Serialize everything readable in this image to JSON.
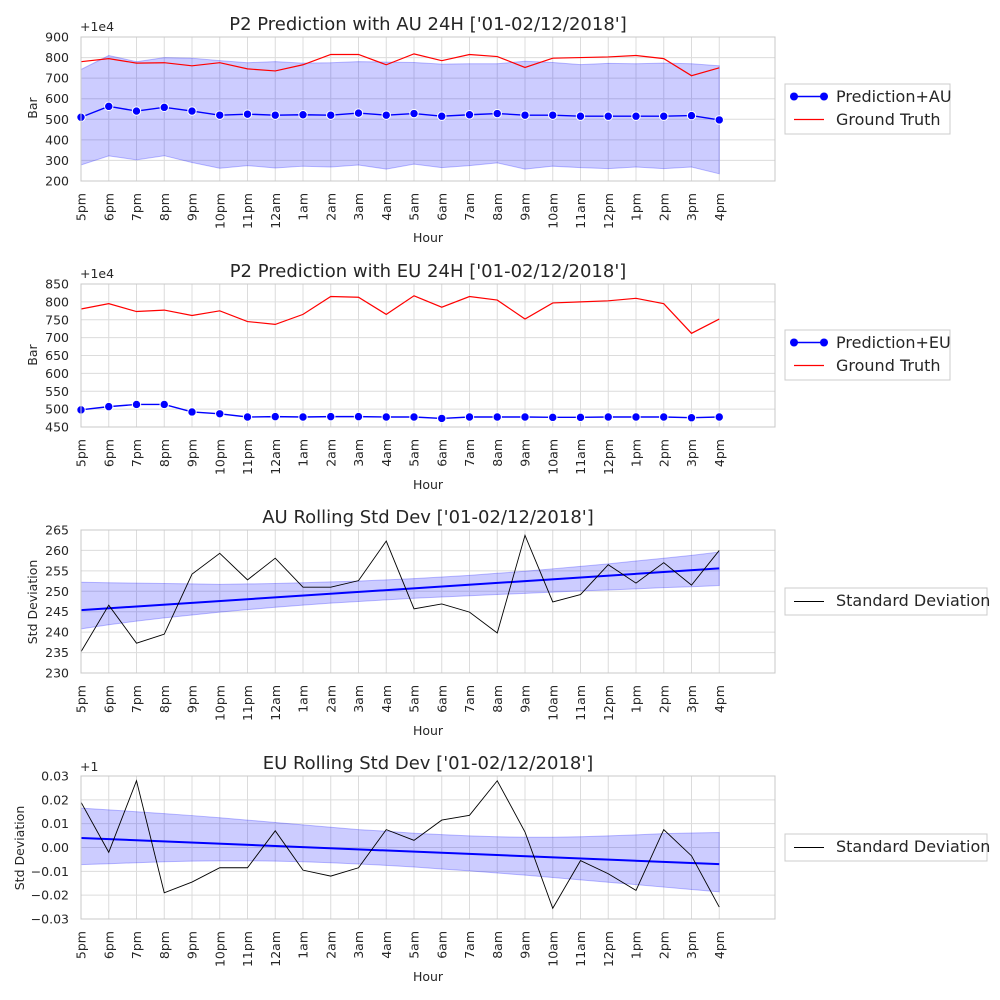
{
  "colors": {
    "prediction": "#0000ff",
    "ground_truth": "#ff0000",
    "band": "#0000ff",
    "std_line": "#000000",
    "trend": "#0000ff",
    "grid": "#dcdcdc",
    "frame": "#c8c8c8"
  },
  "chart_data": [
    {
      "type": "line",
      "title": "P2 Prediction with AU 24H ['01-02/12/2018']",
      "xlabel": "Hour",
      "ylabel": "Bar",
      "y_offset_label": "+1e4",
      "categories": [
        "5pm",
        "6pm",
        "7pm",
        "8pm",
        "9pm",
        "10pm",
        "11pm",
        "12am",
        "1am",
        "2am",
        "3am",
        "4am",
        "5am",
        "6am",
        "7am",
        "8am",
        "9am",
        "10am",
        "11am",
        "12pm",
        "1pm",
        "2pm",
        "3pm",
        "4pm"
      ],
      "ylim": [
        200,
        900
      ],
      "yticks": [
        200,
        300,
        400,
        500,
        600,
        700,
        800,
        900
      ],
      "ytick_labels": [
        "200",
        "300",
        "400",
        "500",
        "600",
        "700",
        "800",
        "900"
      ],
      "grid": true,
      "legend_placement": "right-outside",
      "series": [
        {
          "name": "Prediction+AU",
          "marker": true,
          "values": [
            510,
            563,
            540,
            558,
            540,
            520,
            525,
            520,
            522,
            520,
            530,
            520,
            528,
            515,
            522,
            528,
            520,
            520,
            515,
            515,
            515,
            515,
            518,
            497
          ]
        },
        {
          "name": "Ground Truth",
          "marker": false,
          "values": [
            780,
            795,
            773,
            775,
            760,
            775,
            745,
            735,
            765,
            815,
            815,
            765,
            818,
            785,
            815,
            805,
            752,
            797,
            800,
            803,
            810,
            795,
            712,
            750
          ]
        }
      ],
      "band": {
        "upper": [
          742,
          810,
          780,
          800,
          797,
          785,
          775,
          780,
          773,
          775,
          780,
          778,
          776,
          768,
          770,
          770,
          782,
          776,
          766,
          772,
          770,
          773,
          770,
          760
        ],
        "lower": [
          278,
          322,
          303,
          323,
          290,
          262,
          275,
          263,
          272,
          268,
          278,
          258,
          282,
          265,
          275,
          288,
          258,
          272,
          265,
          260,
          268,
          260,
          268,
          235
        ]
      }
    },
    {
      "type": "line",
      "title": "P2 Prediction with EU 24H ['01-02/12/2018']",
      "xlabel": "Hour",
      "ylabel": "Bar",
      "y_offset_label": "+1e4",
      "categories": [
        "5pm",
        "6pm",
        "7pm",
        "8pm",
        "9pm",
        "10pm",
        "11pm",
        "12am",
        "1am",
        "2am",
        "3am",
        "4am",
        "5am",
        "6am",
        "7am",
        "8am",
        "9am",
        "10am",
        "11am",
        "12pm",
        "1pm",
        "2pm",
        "3pm",
        "4pm"
      ],
      "ylim": [
        450,
        850
      ],
      "yticks": [
        450,
        500,
        550,
        600,
        650,
        700,
        750,
        800,
        850
      ],
      "ytick_labels": [
        "450",
        "500",
        "550",
        "600",
        "650",
        "700",
        "750",
        "800",
        "850"
      ],
      "grid": true,
      "legend_placement": "right-outside",
      "series": [
        {
          "name": "Prediction+EU",
          "marker": true,
          "values": [
            498,
            507,
            513,
            513,
            492,
            487,
            478,
            479,
            478,
            479,
            479,
            478,
            478,
            474,
            478,
            478,
            478,
            477,
            477,
            478,
            478,
            478,
            476,
            478
          ]
        },
        {
          "name": "Ground Truth",
          "marker": false,
          "values": [
            780,
            795,
            773,
            777,
            762,
            775,
            745,
            737,
            765,
            815,
            813,
            765,
            817,
            785,
            815,
            805,
            752,
            797,
            800,
            803,
            810,
            795,
            712,
            752
          ]
        }
      ]
    },
    {
      "type": "line",
      "title": "AU Rolling Std Dev ['01-02/12/2018']",
      "xlabel": "Hour",
      "ylabel": "Std Deviation",
      "y_offset_label": "",
      "categories": [
        "5pm",
        "6pm",
        "7pm",
        "8pm",
        "9pm",
        "10pm",
        "11pm",
        "12am",
        "1am",
        "2am",
        "3am",
        "4am",
        "5am",
        "6am",
        "7am",
        "8am",
        "9am",
        "10am",
        "11am",
        "12pm",
        "1pm",
        "2pm",
        "3pm",
        "4pm"
      ],
      "ylim": [
        230,
        265
      ],
      "yticks": [
        230,
        235,
        240,
        245,
        250,
        255,
        260,
        265
      ],
      "ytick_labels": [
        "230",
        "235",
        "240",
        "245",
        "250",
        "255",
        "260",
        "265"
      ],
      "grid": true,
      "legend_placement": "right-outside",
      "series": [
        {
          "name": "Standard Deviation",
          "values": [
            235.2,
            246.6,
            237.3,
            239.5,
            254.2,
            259.3,
            252.8,
            258.1,
            251,
            251,
            252.6,
            262.3,
            245.7,
            246.9,
            244.9,
            239.8,
            263.7,
            247.4,
            249.2,
            256.5,
            252,
            257,
            251.5,
            260
          ]
        }
      ],
      "trend": {
        "start": 245.4,
        "end": 255.6
      },
      "band": {
        "upper": [
          252.2,
          252.1,
          252,
          251.9,
          251.8,
          251.7,
          251.8,
          251.9,
          252.1,
          252.3,
          252.5,
          252.8,
          253.1,
          253.5,
          253.9,
          254.4,
          254.9,
          255.5,
          256.1,
          256.7,
          257.4,
          258.1,
          258.8,
          259.6
        ],
        "lower": [
          240.8,
          241.8,
          242.7,
          243.5,
          244.2,
          244.9,
          245.5,
          246.1,
          246.6,
          247.1,
          247.5,
          247.9,
          248.3,
          248.6,
          248.9,
          249.2,
          249.5,
          249.8,
          250.1,
          250.3,
          250.6,
          250.9,
          251.1,
          251.4
        ]
      }
    },
    {
      "type": "line",
      "title": "EU Rolling Std Dev ['01-02/12/2018']",
      "xlabel": "Hour",
      "ylabel": "Std Deviation",
      "y_offset_label": "+1",
      "categories": [
        "5pm",
        "6pm",
        "7pm",
        "8pm",
        "9pm",
        "10pm",
        "11pm",
        "12am",
        "1am",
        "2am",
        "3am",
        "4am",
        "5am",
        "6am",
        "7am",
        "8am",
        "9am",
        "10am",
        "11am",
        "12pm",
        "1pm",
        "2pm",
        "3pm",
        "4pm"
      ],
      "ylim": [
        -0.03,
        0.03
      ],
      "yticks": [
        -0.03,
        -0.02,
        -0.01,
        0,
        0.01,
        0.02,
        0.03
      ],
      "ytick_labels": [
        "−0.03",
        "−0.02",
        "−0.01",
        "0.00",
        "0.01",
        "0.02",
        "0.03"
      ],
      "grid": true,
      "legend_placement": "right-outside",
      "series": [
        {
          "name": "Standard Deviation",
          "values": [
            0.019,
            -0.002,
            0.028,
            -0.019,
            -0.0145,
            -0.0085,
            -0.0085,
            0.007,
            -0.0095,
            -0.012,
            -0.0085,
            0.0075,
            0.003,
            0.0115,
            0.0135,
            0.028,
            0.0065,
            -0.0255,
            -0.0055,
            -0.011,
            -0.018,
            0.0075,
            -0.0035,
            -0.025
          ]
        }
      ],
      "trend": {
        "start": 0.004,
        "end": -0.007
      },
      "band": {
        "upper": [
          0.0165,
          0.0158,
          0.015,
          0.0142,
          0.0134,
          0.0125,
          0.0115,
          0.0105,
          0.0095,
          0.0085,
          0.0075,
          0.0068,
          0.006,
          0.0054,
          0.0049,
          0.0045,
          0.0043,
          0.0043,
          0.0045,
          0.0049,
          0.0053,
          0.0058,
          0.0061,
          0.0063
        ],
        "lower": [
          -0.0072,
          -0.0068,
          -0.0064,
          -0.006,
          -0.0057,
          -0.0056,
          -0.0056,
          -0.0057,
          -0.006,
          -0.0064,
          -0.0069,
          -0.0075,
          -0.0082,
          -0.009,
          -0.0098,
          -0.0107,
          -0.0116,
          -0.0126,
          -0.0136,
          -0.0146,
          -0.0156,
          -0.0166,
          -0.0176,
          -0.0186
        ]
      }
    }
  ]
}
